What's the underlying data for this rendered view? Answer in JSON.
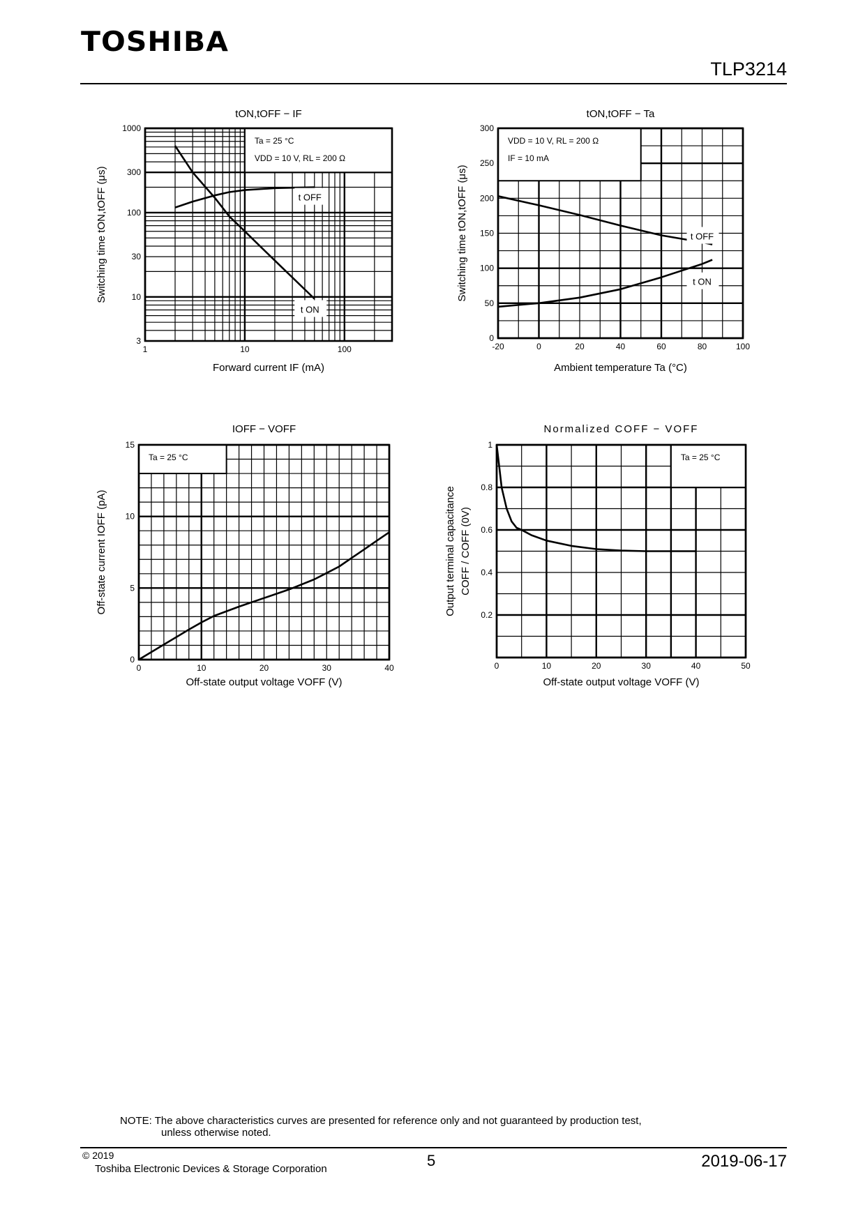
{
  "header": {
    "logo": "TOSHIBA",
    "part_number": "TLP3214"
  },
  "chart_data": [
    {
      "type": "line",
      "title": "tON,tOFF − IF",
      "xlabel": "Forward current   IF   (mA)",
      "ylabel": "Switching time   tON,tOFF   (μs)",
      "xscale": "log",
      "yscale": "log",
      "xlim": [
        1,
        300
      ],
      "ylim": [
        3,
        1000
      ],
      "x_ticks": [
        1,
        10,
        100
      ],
      "y_ticks": [
        3,
        10,
        30,
        100,
        300,
        1000
      ],
      "grid_x": [
        1,
        2,
        3,
        4,
        5,
        6,
        7,
        8,
        9,
        10,
        20,
        30,
        40,
        50,
        60,
        70,
        80,
        90,
        100,
        200
      ],
      "grid_y": [
        3,
        4,
        5,
        6,
        7,
        8,
        9,
        10,
        20,
        30,
        40,
        50,
        60,
        70,
        80,
        90,
        100,
        200,
        300,
        400,
        500,
        600,
        700,
        800,
        900,
        1000
      ],
      "major_x": [
        1,
        10,
        100
      ],
      "major_y": [
        10,
        100,
        300,
        1000
      ],
      "conditions": [
        "Ta = 25 °C",
        "VDD = 10 V, RL = 200 Ω"
      ],
      "series": [
        {
          "name": "t OFF",
          "x": [
            2,
            3,
            5,
            7,
            10,
            20,
            50
          ],
          "y": [
            115,
            135,
            160,
            175,
            185,
            195,
            200
          ]
        },
        {
          "name": "t ON",
          "x": [
            2,
            3,
            5,
            7,
            10,
            20,
            50
          ],
          "y": [
            620,
            300,
            150,
            90,
            60,
            27,
            9.5
          ]
        }
      ]
    },
    {
      "type": "line",
      "title": "tON,tOFF − Ta",
      "xlabel": "Ambient temperature   Ta   (°C)",
      "ylabel": "Switching time   tON,tOFF   (μs)",
      "xscale": "linear",
      "yscale": "linear",
      "xlim": [
        -20,
        100
      ],
      "ylim": [
        0,
        300
      ],
      "x_ticks": [
        -20,
        0,
        20,
        40,
        60,
        80,
        100
      ],
      "y_ticks": [
        0,
        50,
        100,
        150,
        200,
        250,
        300
      ],
      "grid_x": [
        -20,
        -10,
        0,
        10,
        20,
        30,
        40,
        50,
        60,
        70,
        80,
        90,
        100
      ],
      "grid_y": [
        0,
        25,
        50,
        75,
        100,
        125,
        150,
        175,
        200,
        225,
        250,
        275,
        300
      ],
      "major_x": [
        -20,
        0,
        40,
        60,
        100
      ],
      "major_y": [
        0,
        50,
        100,
        250,
        300
      ],
      "conditions": [
        "VDD = 10 V,   RL = 200 Ω",
        "IF = 10 mA"
      ],
      "series": [
        {
          "name": "t OFF",
          "x": [
            -20,
            0,
            20,
            40,
            60,
            80,
            85
          ],
          "y": [
            203,
            190,
            176,
            161,
            147,
            137,
            134
          ]
        },
        {
          "name": "t ON",
          "x": [
            -20,
            0,
            20,
            40,
            60,
            80,
            85
          ],
          "y": [
            45,
            50,
            58,
            70,
            87,
            106,
            112
          ]
        }
      ]
    },
    {
      "type": "line",
      "title": "IOFF − VOFF",
      "xlabel": "Off-state output voltage VOFF    (V)",
      "ylabel": "Off-state current    IOFF    (pA)",
      "xscale": "linear",
      "yscale": "linear",
      "xlim": [
        0,
        40
      ],
      "ylim": [
        0,
        15
      ],
      "x_ticks": [
        0,
        10,
        20,
        30,
        40
      ],
      "y_ticks": [
        0,
        5,
        10,
        15
      ],
      "grid_x": [
        0,
        2,
        4,
        6,
        8,
        10,
        12,
        14,
        16,
        18,
        20,
        22,
        24,
        26,
        28,
        30,
        32,
        34,
        36,
        38,
        40
      ],
      "grid_y": [
        0,
        1,
        2,
        3,
        4,
        5,
        6,
        7,
        8,
        9,
        10,
        11,
        12,
        13,
        14,
        15
      ],
      "major_x": [
        0,
        10,
        40
      ],
      "major_y": [
        0,
        5,
        10,
        15
      ],
      "conditions": [
        "Ta = 25 °C"
      ],
      "series": [
        {
          "name": "IOFF",
          "x": [
            0,
            4,
            8,
            10,
            12,
            16,
            20,
            24,
            28,
            30,
            32,
            34,
            36,
            38,
            40
          ],
          "y": [
            0,
            1.05,
            2.1,
            2.6,
            3.05,
            3.7,
            4.3,
            4.9,
            5.6,
            6.05,
            6.5,
            7.1,
            7.7,
            8.3,
            8.9
          ]
        }
      ]
    },
    {
      "type": "line",
      "title": "Normalized COFF − VOFF",
      "xlabel": "Off-state output voltage VOFF    (V)",
      "ylabel": [
        "Output terminal capacitance",
        "COFF / COFF (0V)"
      ],
      "xscale": "linear",
      "yscale": "linear",
      "xlim": [
        0,
        50
      ],
      "ylim": [
        0,
        1
      ],
      "x_ticks": [
        0,
        10,
        20,
        30,
        40,
        50
      ],
      "y_ticks": [
        0.2,
        0.4,
        0.6,
        0.8,
        1
      ],
      "grid_x": [
        0,
        5,
        10,
        15,
        20,
        25,
        30,
        35,
        40,
        45,
        50
      ],
      "grid_y": [
        0,
        0.1,
        0.2,
        0.3,
        0.4,
        0.5,
        0.6,
        0.7,
        0.8,
        0.9,
        1
      ],
      "major_x": [
        0,
        10,
        20,
        30,
        35,
        40,
        50
      ],
      "major_y": [
        0,
        0.2,
        0.6,
        0.8,
        1
      ],
      "conditions": [
        "Ta = 25 °C"
      ],
      "series": [
        {
          "name": "COFF/COFF(0V)",
          "x": [
            0,
            0.5,
            1,
            2,
            3,
            4,
            5,
            7,
            10,
            15,
            20,
            25,
            30,
            40
          ],
          "y": [
            1,
            0.9,
            0.8,
            0.7,
            0.64,
            0.61,
            0.6,
            0.575,
            0.55,
            0.525,
            0.51,
            0.503,
            0.5,
            0.5
          ]
        }
      ]
    }
  ],
  "note": {
    "line1": "NOTE:  The above characteristics curves are presented for reference only and not guaranteed by production test,",
    "line2": "unless otherwise noted."
  },
  "footer": {
    "copyright": "© 2019",
    "company": "Toshiba Electronic Devices & Storage Corporation",
    "page": "5",
    "date": "2019-06-17"
  }
}
